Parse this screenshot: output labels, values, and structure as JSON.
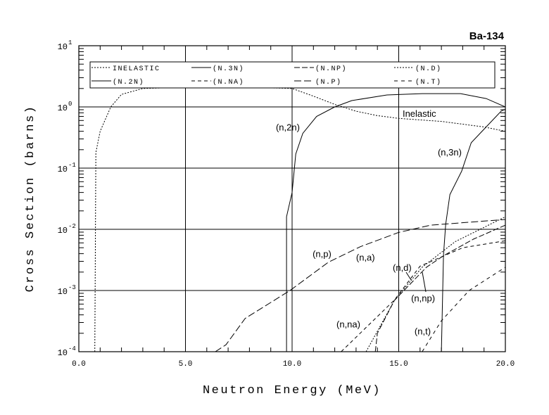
{
  "chart_data": {
    "type": "line",
    "title": "Ba-134",
    "xlabel": "Neutron Energy (MeV)",
    "ylabel": "Cross Section (barns)",
    "xscale": "linear",
    "yscale": "log",
    "xlim": [
      0,
      20
    ],
    "ylim": [
      0.0001,
      10
    ],
    "grid": true,
    "legend_placement": "top",
    "x_ticks": [
      "0.0",
      "5.0",
      "10.0",
      "15.0",
      "20.0"
    ],
    "x_tick_values": [
      0,
      5,
      10,
      15,
      20
    ],
    "y_ticks": [
      {
        "base": "10",
        "exp": "1",
        "value": 10
      },
      {
        "base": "10",
        "exp": "0",
        "value": 1
      },
      {
        "base": "10",
        "exp": "-1",
        "value": 0.1
      },
      {
        "base": "10",
        "exp": "-2",
        "value": 0.01
      },
      {
        "base": "10",
        "exp": "-3",
        "value": 0.001
      },
      {
        "base": "10",
        "exp": "-4",
        "value": 0.0001
      }
    ],
    "series": [
      {
        "name": "INELASTIC",
        "dash": "2,2",
        "x": [
          0.75,
          0.8,
          1.0,
          1.5,
          2.0,
          3.0,
          5.0,
          8.0,
          10.0,
          11.0,
          12.0,
          13.0,
          14.0,
          15.0,
          17.0,
          19.0,
          20.0
        ],
        "y": [
          0.0001,
          0.18,
          0.4,
          1.0,
          1.6,
          2.0,
          2.1,
          2.1,
          2.0,
          1.5,
          1.1,
          0.85,
          0.72,
          0.65,
          0.58,
          0.47,
          0.4
        ]
      },
      {
        "name": "(N.3N)",
        "dash": "",
        "x": [
          17.0,
          17.1,
          17.2,
          17.4,
          17.95,
          18.4,
          19.1,
          19.8,
          20.0
        ],
        "y": [
          0.0001,
          0.0038,
          0.012,
          0.037,
          0.089,
          0.26,
          0.47,
          0.85,
          0.92
        ]
      },
      {
        "name": "(N.NP)",
        "dash": "8,3",
        "x": [
          13.9,
          14.0,
          14.8,
          16.3,
          17.1,
          18.5,
          20.0
        ],
        "y": [
          0.0001,
          0.0002,
          0.00069,
          0.0024,
          0.0037,
          0.0069,
          0.0117
        ]
      },
      {
        "name": "(N.D)",
        "dash": "2,2",
        "x": [
          13.47,
          14.8,
          16.1,
          17.65,
          20.0
        ],
        "y": [
          0.0001,
          0.00069,
          0.0024,
          0.0063,
          0.016
        ]
      },
      {
        "name": "(N.2N)",
        "dash": "",
        "x": [
          9.74,
          9.74,
          10.0,
          10.17,
          10.5,
          11.15,
          12.0,
          12.8,
          14.45,
          16.1,
          17.9,
          19.1,
          20.0
        ],
        "y": [
          0.0001,
          0.016,
          0.04,
          0.17,
          0.37,
          0.7,
          1.0,
          1.27,
          1.57,
          1.65,
          1.65,
          1.37,
          1.0
        ]
      },
      {
        "name": "(N.NA)",
        "dash": "5,4",
        "x": [
          12.3,
          14.8,
          16.0,
          18.0,
          20.0
        ],
        "y": [
          0.0001,
          0.0007,
          0.0025,
          0.005,
          0.0065
        ]
      },
      {
        "name": "(N.P)",
        "dash": "10,4",
        "x": [
          6.4,
          6.9,
          7.8,
          9.9,
          11.7,
          13.2,
          15.0,
          16.5,
          20.0
        ],
        "y": [
          0.0001,
          0.00013,
          0.00035,
          0.001,
          0.0029,
          0.0052,
          0.0089,
          0.0117,
          0.0145
        ]
      },
      {
        "name": "(N.T)",
        "dash": "5,5",
        "x": [
          16.1,
          17.0,
          18.3,
          20.0
        ],
        "y": [
          0.0001,
          0.00032,
          0.001,
          0.0024
        ]
      }
    ],
    "annotations": [
      {
        "text": "Inelastic",
        "x": 15.18,
        "y": 0.69
      },
      {
        "text": "(n,2n)",
        "x": 9.24,
        "y": 0.41
      },
      {
        "text": "(n,3n)",
        "x": 16.83,
        "y": 0.16
      },
      {
        "text": "(n,p)",
        "x": 10.96,
        "y": 0.0035
      },
      {
        "text": "(n,a)",
        "x": 13.0,
        "y": 0.0031
      },
      {
        "text": "(n,d)",
        "x": 14.72,
        "y": 0.0021
      },
      {
        "text": "(n,np)",
        "x": 15.58,
        "y": 0.00066
      },
      {
        "text": "(n,na)",
        "x": 12.08,
        "y": 0.00025
      },
      {
        "text": "(n,t)",
        "x": 15.74,
        "y": 0.00019
      }
    ]
  }
}
